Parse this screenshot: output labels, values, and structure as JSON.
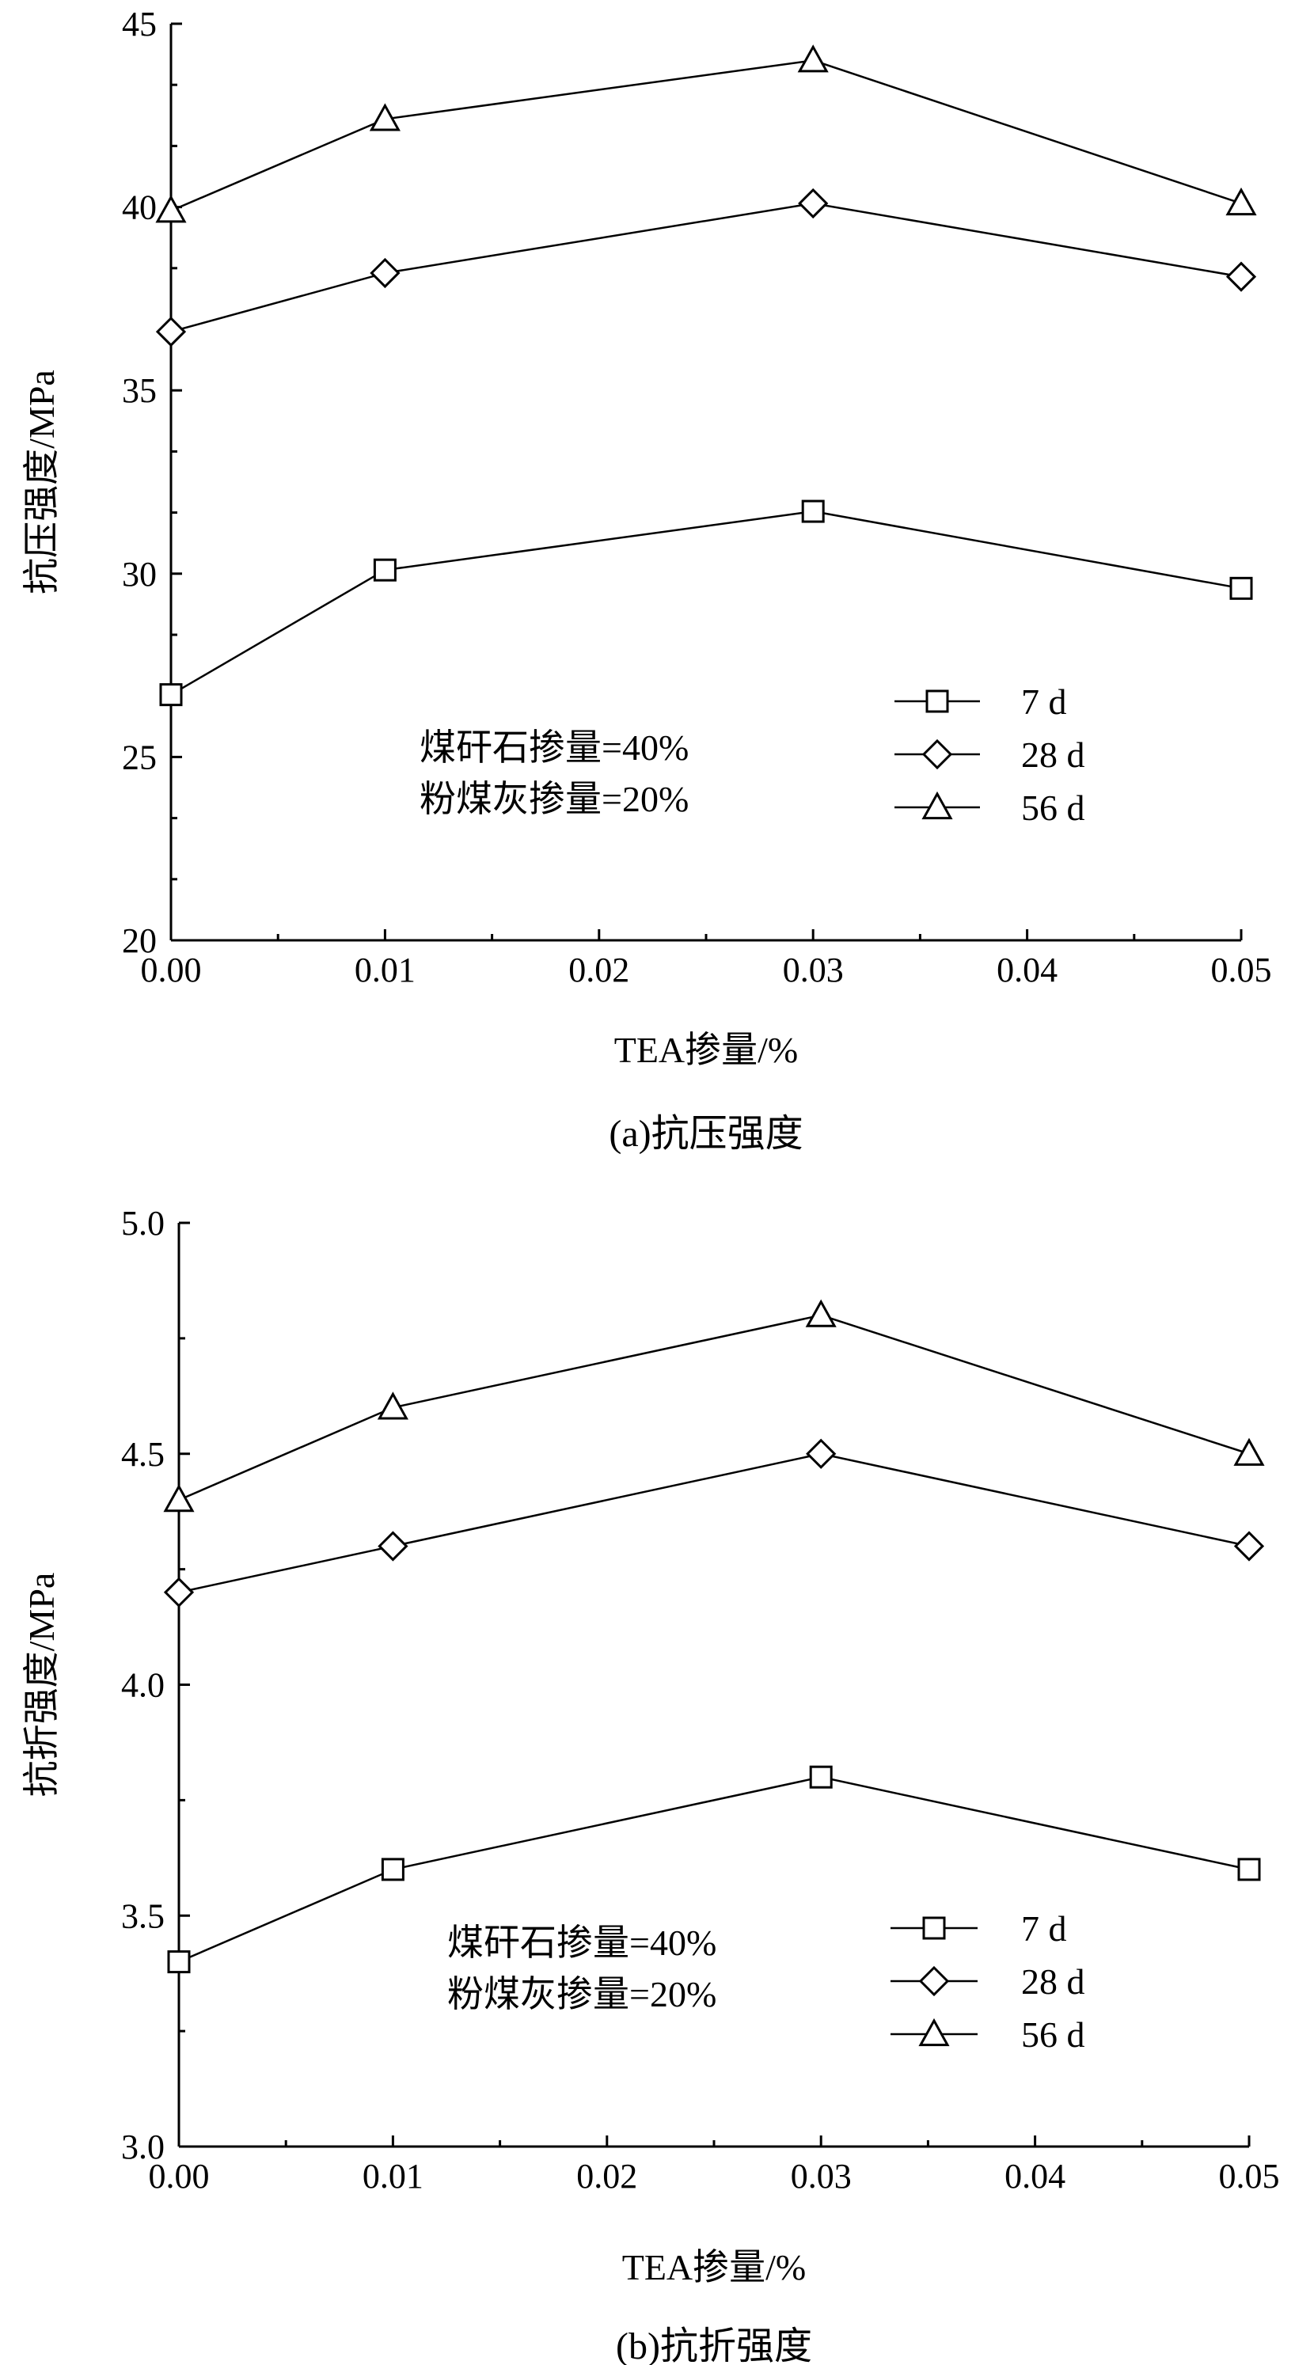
{
  "chart_data": [
    {
      "type": "line",
      "caption": "(a)抗压强度",
      "xlabel": "TEA掺量/%",
      "ylabel": "抗压强度/MPa",
      "xlim": [
        0,
        0.05
      ],
      "ylim": [
        20,
        45
      ],
      "xticks": [
        "0.00",
        "0.01",
        "0.02",
        "0.03",
        "0.04",
        "0.05"
      ],
      "yticks": [
        "20",
        "25",
        "30",
        "35",
        "40",
        "45"
      ],
      "x": [
        0,
        0.01,
        0.03,
        0.05
      ],
      "series": [
        {
          "name": "7 d",
          "marker": "square",
          "values": [
            26.7,
            30.1,
            31.7,
            29.6
          ]
        },
        {
          "name": "28 d",
          "marker": "diamond",
          "values": [
            36.6,
            38.2,
            40.1,
            38.1
          ]
        },
        {
          "name": "56 d",
          "marker": "triangle",
          "values": [
            39.9,
            42.4,
            44.0,
            40.1
          ]
        }
      ],
      "annotations": [
        "煤矸石掺量=40%",
        "粉煤灰掺量=20%"
      ],
      "legend_position": "right"
    },
    {
      "type": "line",
      "caption": "(b)抗折强度",
      "xlabel": "TEA掺量/%",
      "ylabel": "抗折强度/MPa",
      "xlim": [
        0,
        0.05
      ],
      "ylim": [
        3.0,
        5.0
      ],
      "xticks": [
        "0.00",
        "0.01",
        "0.02",
        "0.03",
        "0.04",
        "0.05"
      ],
      "yticks": [
        "3.0",
        "3.5",
        "4.0",
        "4.5",
        "5.0"
      ],
      "x": [
        0,
        0.01,
        0.03,
        0.05
      ],
      "series": [
        {
          "name": "7 d",
          "marker": "square",
          "values": [
            3.4,
            3.6,
            3.8,
            3.6
          ]
        },
        {
          "name": "28 d",
          "marker": "diamond",
          "values": [
            4.2,
            4.3,
            4.5,
            4.3
          ]
        },
        {
          "name": "56 d",
          "marker": "triangle",
          "values": [
            4.4,
            4.6,
            4.8,
            4.5
          ]
        }
      ],
      "annotations": [
        "煤矸石掺量=40%",
        "粉煤灰掺量=20%"
      ],
      "legend_position": "right"
    }
  ]
}
